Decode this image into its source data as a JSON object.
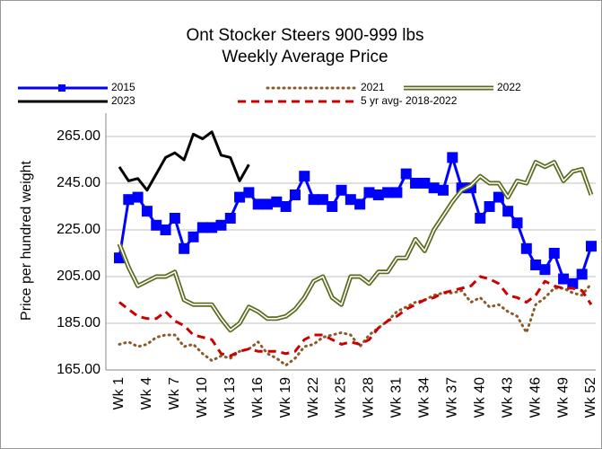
{
  "chart_data": {
    "type": "line",
    "title": "Ont Stocker Steers 900-999 lbs",
    "subtitle": "Weekly Average Price",
    "y_label": "Price per hundred weight",
    "categories": [
      "Wk 1",
      null,
      null,
      "Wk 4",
      null,
      null,
      "Wk 7",
      null,
      null,
      "Wk 10",
      null,
      null,
      "Wk 13",
      null,
      null,
      "Wk 16",
      null,
      null,
      "Wk 19",
      null,
      null,
      "Wk 22",
      null,
      null,
      "Wk 25",
      null,
      null,
      "Wk 28",
      null,
      null,
      "Wk 31",
      null,
      null,
      "Wk 34",
      null,
      null,
      "Wk 37",
      null,
      null,
      "Wk 40",
      null,
      null,
      "Wk 43",
      null,
      null,
      "Wk 46",
      null,
      null,
      "Wk 49",
      null,
      null,
      "Wk 52"
    ],
    "ylim": [
      165,
      275
    ],
    "yticks": [
      {
        "value": 165,
        "label": "165.00"
      },
      {
        "value": 185,
        "label": "185.00"
      },
      {
        "value": 205,
        "label": "205.00"
      },
      {
        "value": 225,
        "label": "225.00"
      },
      {
        "value": 245,
        "label": "245.00"
      },
      {
        "value": 265,
        "label": "265.00"
      }
    ],
    "grid": true,
    "legend": "top",
    "series": [
      {
        "name": "2015",
        "color": "#0000ff",
        "style": "solid",
        "marker": "square",
        "values": [
          213,
          238,
          239,
          233,
          227,
          225,
          230,
          217,
          222,
          226,
          226,
          227,
          230,
          239,
          241,
          236,
          236,
          237,
          235,
          240,
          248,
          238,
          238,
          235,
          242,
          238,
          236,
          241,
          240,
          241,
          241,
          249,
          245,
          245,
          243,
          242,
          256,
          243,
          243,
          230,
          235,
          239,
          233,
          228,
          217,
          210,
          208,
          215,
          204,
          202,
          206,
          218
        ]
      },
      {
        "name": "2021",
        "color": "#8b5a2b",
        "style": "dotted",
        "values": [
          176,
          177,
          175,
          176,
          179,
          180,
          180,
          175,
          176,
          172,
          169,
          171,
          170,
          173,
          174,
          177,
          172,
          170,
          167,
          170,
          175,
          176,
          179,
          180,
          181,
          180,
          175,
          180,
          183,
          186,
          190,
          192,
          194,
          195,
          197,
          198,
          198,
          199,
          194,
          196,
          192,
          193,
          190,
          188,
          181,
          193,
          196,
          200,
          200,
          198,
          197,
          202
        ]
      },
      {
        "name": "2022",
        "color": "#5a6b1e",
        "style": "double",
        "values": [
          219,
          209,
          201,
          203,
          205,
          205,
          207,
          195,
          193,
          193,
          193,
          187,
          182,
          185,
          192,
          190,
          187,
          187,
          188,
          191,
          196,
          203,
          205,
          196,
          193,
          205,
          205,
          202,
          207,
          207,
          213,
          213,
          221,
          216,
          225,
          231,
          237,
          242,
          244,
          248,
          245,
          245,
          239,
          246,
          245,
          254,
          252,
          254,
          246,
          250,
          251,
          240
        ]
      },
      {
        "name": "2023",
        "color": "#000000",
        "style": "solid",
        "values": [
          252,
          246,
          247,
          242,
          249,
          256,
          258,
          255,
          266,
          264,
          267,
          257,
          256,
          246,
          253,
          null,
          null,
          null,
          null,
          null,
          null,
          null,
          null,
          null,
          null,
          null,
          null,
          null,
          null,
          null,
          null,
          null,
          null,
          null,
          null,
          null,
          null,
          null,
          null,
          null,
          null,
          null,
          null,
          null,
          null,
          null,
          null,
          null,
          null,
          null,
          null,
          null
        ]
      },
      {
        "name": "5 yr avg- 2018-2022",
        "color": "#cc0000",
        "style": "dashed",
        "values": [
          194,
          191,
          188,
          187,
          187,
          190,
          186,
          184,
          180,
          179,
          178,
          172,
          171,
          173,
          174,
          173,
          173,
          173,
          172,
          173,
          178,
          180,
          180,
          178,
          176,
          177,
          176,
          178,
          183,
          186,
          188,
          191,
          193,
          195,
          196,
          198,
          199,
          200,
          201,
          205,
          204,
          202,
          197,
          196,
          194,
          197,
          203,
          201,
          200,
          200,
          199,
          193
        ]
      }
    ]
  }
}
